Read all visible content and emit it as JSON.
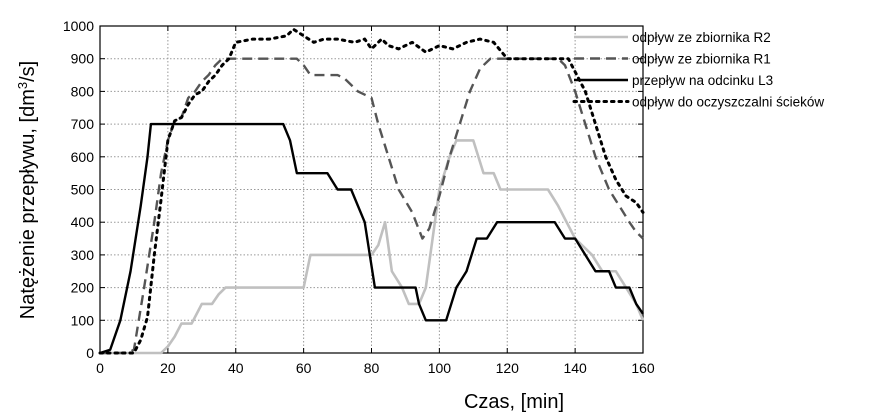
{
  "chart_data": {
    "type": "line",
    "xlabel": "Czas, [min]",
    "ylabel_prefix": "Natężenie przepływu, [dm",
    "ylabel_sup": "3",
    "ylabel_suffix": "/s]",
    "xlim": [
      0,
      160
    ],
    "ylim": [
      0,
      1000
    ],
    "xticks": [
      0,
      20,
      40,
      60,
      80,
      100,
      120,
      140,
      160
    ],
    "yticks": [
      0,
      100,
      200,
      300,
      400,
      500,
      600,
      700,
      800,
      900,
      1000
    ],
    "grid": true,
    "legend_position": "top-right",
    "series": [
      {
        "name": "odpływ ze zbiornika R2",
        "color": "#c0c0c0",
        "style": "solid",
        "points": [
          [
            0,
            0
          ],
          [
            18,
            0
          ],
          [
            20,
            20
          ],
          [
            22,
            50
          ],
          [
            24,
            90
          ],
          [
            27,
            90
          ],
          [
            29,
            130
          ],
          [
            30,
            150
          ],
          [
            33,
            150
          ],
          [
            35,
            180
          ],
          [
            37,
            200
          ],
          [
            58,
            200
          ],
          [
            60,
            200
          ],
          [
            62,
            300
          ],
          [
            80,
            300
          ],
          [
            82,
            330
          ],
          [
            84,
            400
          ],
          [
            86,
            250
          ],
          [
            89,
            200
          ],
          [
            91,
            150
          ],
          [
            94,
            150
          ],
          [
            96,
            200
          ],
          [
            98,
            350
          ],
          [
            100,
            500
          ],
          [
            103,
            600
          ],
          [
            105,
            650
          ],
          [
            110,
            650
          ],
          [
            113,
            550
          ],
          [
            116,
            550
          ],
          [
            118,
            500
          ],
          [
            132,
            500
          ],
          [
            135,
            450
          ],
          [
            140,
            350
          ],
          [
            145,
            300
          ],
          [
            148,
            250
          ],
          [
            152,
            250
          ],
          [
            155,
            200
          ],
          [
            158,
            150
          ],
          [
            160,
            100
          ]
        ]
      },
      {
        "name": "odpływ ze zbiornika R1",
        "color": "#555555",
        "style": "dashed",
        "points": [
          [
            0,
            0
          ],
          [
            8,
            0
          ],
          [
            10,
            10
          ],
          [
            13,
            200
          ],
          [
            16,
            400
          ],
          [
            18,
            550
          ],
          [
            20,
            650
          ],
          [
            22,
            710
          ],
          [
            24,
            720
          ],
          [
            26,
            780
          ],
          [
            28,
            800
          ],
          [
            30,
            830
          ],
          [
            32,
            850
          ],
          [
            34,
            880
          ],
          [
            36,
            900
          ],
          [
            58,
            900
          ],
          [
            60,
            880
          ],
          [
            62,
            850
          ],
          [
            70,
            850
          ],
          [
            72,
            840
          ],
          [
            74,
            820
          ],
          [
            76,
            800
          ],
          [
            80,
            780
          ],
          [
            82,
            700
          ],
          [
            85,
            600
          ],
          [
            88,
            500
          ],
          [
            92,
            430
          ],
          [
            95,
            350
          ],
          [
            97,
            380
          ],
          [
            100,
            480
          ],
          [
            103,
            600
          ],
          [
            106,
            700
          ],
          [
            109,
            800
          ],
          [
            112,
            870
          ],
          [
            115,
            900
          ],
          [
            135,
            900
          ],
          [
            137,
            880
          ],
          [
            140,
            800
          ],
          [
            143,
            700
          ],
          [
            146,
            600
          ],
          [
            150,
            500
          ],
          [
            153,
            450
          ],
          [
            156,
            400
          ],
          [
            158,
            370
          ],
          [
            160,
            350
          ]
        ]
      },
      {
        "name": "przepływ na odcinku L3",
        "color": "#000000",
        "style": "solid",
        "points": [
          [
            0,
            0
          ],
          [
            3,
            10
          ],
          [
            6,
            100
          ],
          [
            9,
            250
          ],
          [
            12,
            450
          ],
          [
            14,
            600
          ],
          [
            15,
            700
          ],
          [
            54,
            700
          ],
          [
            56,
            650
          ],
          [
            58,
            550
          ],
          [
            67,
            550
          ],
          [
            70,
            500
          ],
          [
            74,
            500
          ],
          [
            78,
            400
          ],
          [
            81,
            200
          ],
          [
            93,
            200
          ],
          [
            94,
            150
          ],
          [
            96,
            100
          ],
          [
            102,
            100
          ],
          [
            105,
            200
          ],
          [
            108,
            250
          ],
          [
            111,
            350
          ],
          [
            114,
            350
          ],
          [
            117,
            400
          ],
          [
            134,
            400
          ],
          [
            137,
            350
          ],
          [
            140,
            350
          ],
          [
            143,
            300
          ],
          [
            146,
            250
          ],
          [
            150,
            250
          ],
          [
            152,
            200
          ],
          [
            156,
            200
          ],
          [
            158,
            150
          ],
          [
            160,
            120
          ]
        ]
      },
      {
        "name": "odpływ do oczyszczalni ścieków",
        "color": "#000000",
        "style": "dotted",
        "points": [
          [
            0,
            0
          ],
          [
            10,
            0
          ],
          [
            12,
            40
          ],
          [
            14,
            110
          ],
          [
            16,
            300
          ],
          [
            18,
            470
          ],
          [
            20,
            650
          ],
          [
            22,
            710
          ],
          [
            24,
            720
          ],
          [
            26,
            760
          ],
          [
            28,
            790
          ],
          [
            30,
            800
          ],
          [
            32,
            830
          ],
          [
            34,
            850
          ],
          [
            36,
            880
          ],
          [
            38,
            900
          ],
          [
            40,
            950
          ],
          [
            45,
            960
          ],
          [
            50,
            960
          ],
          [
            55,
            970
          ],
          [
            57,
            990
          ],
          [
            60,
            970
          ],
          [
            63,
            950
          ],
          [
            66,
            960
          ],
          [
            70,
            960
          ],
          [
            75,
            950
          ],
          [
            78,
            960
          ],
          [
            80,
            930
          ],
          [
            83,
            960
          ],
          [
            85,
            940
          ],
          [
            88,
            930
          ],
          [
            92,
            950
          ],
          [
            96,
            920
          ],
          [
            100,
            940
          ],
          [
            104,
            930
          ],
          [
            108,
            950
          ],
          [
            112,
            960
          ],
          [
            116,
            950
          ],
          [
            120,
            900
          ],
          [
            138,
            900
          ],
          [
            140,
            860
          ],
          [
            143,
            800
          ],
          [
            146,
            700
          ],
          [
            149,
            600
          ],
          [
            152,
            530
          ],
          [
            155,
            480
          ],
          [
            158,
            460
          ],
          [
            160,
            430
          ]
        ]
      }
    ]
  }
}
